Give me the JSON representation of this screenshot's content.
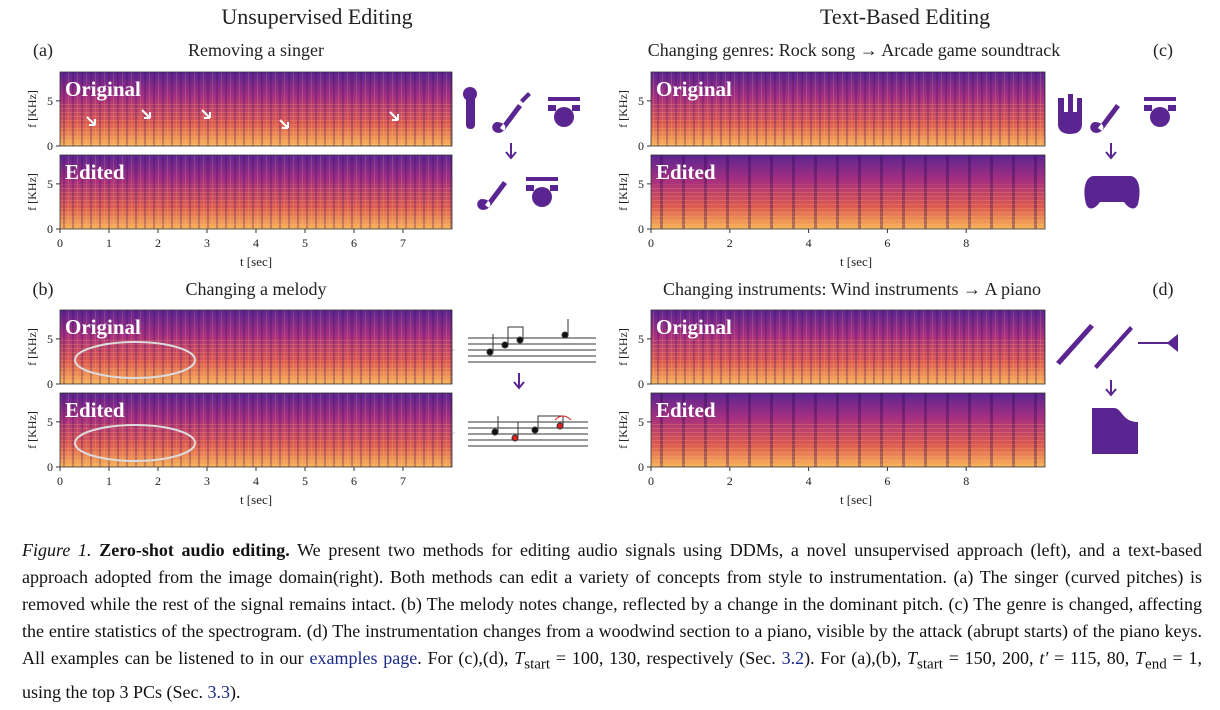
{
  "figure": {
    "columns": [
      {
        "heading": "Unsupervised Editing"
      },
      {
        "heading": "Text-Based Editing"
      }
    ],
    "panels": [
      {
        "label": "(a)",
        "title": "Removing a singer",
        "spectrograms": [
          {
            "tag": "Original"
          },
          {
            "tag": "Edited"
          }
        ],
        "ylabel": "f [KHz]",
        "xlabel": "t [sec]",
        "xlim": [
          0,
          8
        ],
        "xticks": [
          0,
          1,
          2,
          3,
          4,
          5,
          6,
          7
        ],
        "ylim": [
          0,
          8.2
        ],
        "yticks": [
          0,
          5
        ]
      },
      {
        "label": "(b)",
        "title": "Changing a melody",
        "spectrograms": [
          {
            "tag": "Original"
          },
          {
            "tag": "Edited"
          }
        ],
        "ylabel": "f [KHz]",
        "xlabel": "t [sec]",
        "xlim": [
          0,
          8
        ],
        "xticks": [
          0,
          1,
          2,
          3,
          4,
          5,
          6,
          7
        ],
        "ylim": [
          0,
          8.2
        ],
        "yticks": [
          0,
          5
        ]
      },
      {
        "label": "(c)",
        "title": "Changing genres: Rock song → Arcade game soundtrack",
        "spectrograms": [
          {
            "tag": "Original"
          },
          {
            "tag": "Edited"
          }
        ],
        "ylabel": "f [KHz]",
        "xlabel": "t [sec]",
        "xlim": [
          0,
          10
        ],
        "xticks": [
          0,
          2,
          4,
          6,
          8
        ],
        "ylim": [
          0,
          8.2
        ],
        "yticks": [
          0,
          5
        ]
      },
      {
        "label": "(d)",
        "title": "Changing instruments: Wind instruments → A piano",
        "spectrograms": [
          {
            "tag": "Original"
          },
          {
            "tag": "Edited"
          }
        ],
        "ylabel": "f [KHz]",
        "xlabel": "t [sec]",
        "xlim": [
          0,
          10
        ],
        "xticks": [
          0,
          2,
          4,
          6,
          8
        ],
        "ylim": [
          0,
          8.2
        ],
        "yticks": [
          0,
          5
        ]
      }
    ]
  },
  "caption": {
    "label": "Figure 1.",
    "title": "Zero-shot audio editing.",
    "parts": [
      " We present two methods for editing audio signals using DDMs, a novel unsupervised approach (left), and a text-based approach adopted from the image domain(right). Both methods can edit a variety of concepts from style to instrumentation. (a) The singer (curved pitches) is removed while the rest of the signal remains intact. (b) The melody notes change, reflected by a change in the dominant pitch. (c) The genre is changed, affecting the entire statistics of the spectrogram. (d) The instrumentation changes from a woodwind section to a piano, visible by the attack (abrupt starts) of the piano keys. All examples can be listened to in our ",
      "examples page",
      ". For (c),(d), ",
      "T",
      "start",
      " = 100, 130, respectively (Sec. ",
      "3.2",
      "). For (a),(b), ",
      "T",
      "start",
      " = 150, 200, ",
      "t′",
      " = 115, 80, ",
      "T",
      "end",
      " = 1, using the top 3 PCs (Sec. ",
      "3.3",
      ")."
    ]
  }
}
